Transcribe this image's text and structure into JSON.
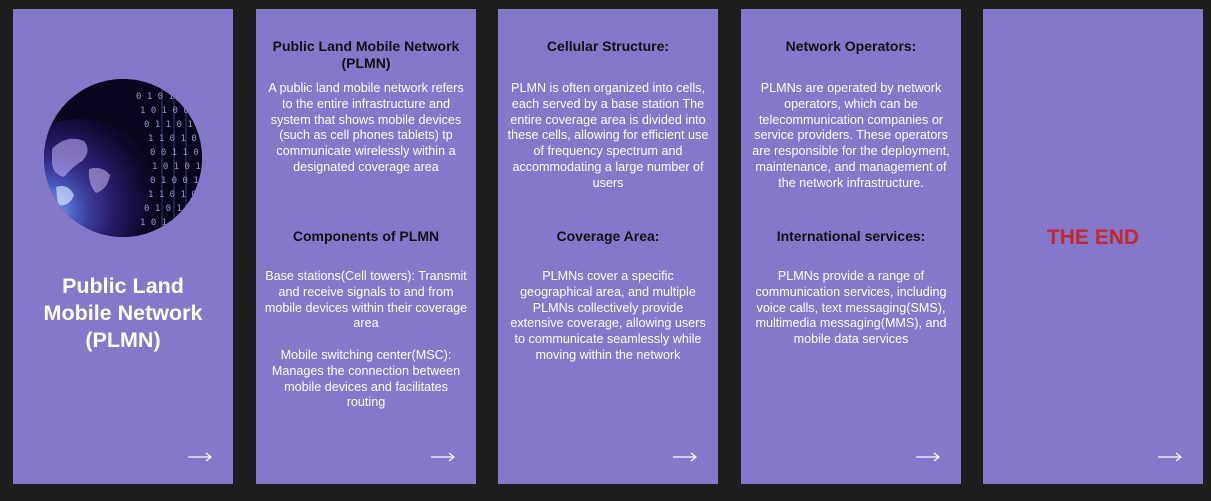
{
  "colors": {
    "background": "#1e1e1e",
    "card": "#8478cb",
    "heading": "#111111",
    "body_text": "#ffffff",
    "end_text": "#c8262e"
  },
  "cards": [
    {
      "title": "Public Land\nMobile Network\n(PLMN)",
      "image": "globe-binary-image",
      "arrow": "arrow-right-icon"
    },
    {
      "sections": [
        {
          "heading": "Public Land Mobile Network (PLMN)",
          "text": "A public land mobile network refers to the entire infrastructure and system that shows mobile devices (such as cell phones tablets) tp communicate wirelessly within a designated coverage area"
        },
        {
          "heading": "Components  of PLMN",
          "text": "Base stations(Cell towers): Transmit and receive signals to and from mobile devices within their coverage area\n\nMobile switching center(MSC):\nManages the connection between mobile devices and facilitates routing"
        }
      ],
      "arrow": "arrow-right-icon"
    },
    {
      "sections": [
        {
          "heading": "Cellular Structure:",
          "text": "PLMN is often organized into cells, each served by a base station The entire coverage area is divided into these cells, allowing for efficient use of frequency spectrum and accommodating a large number of users"
        },
        {
          "heading": "Coverage Area:",
          "text": "PLMNs cover a specific geographical area, and multiple PLMNs collectively provide extensive coverage, allowing users to communicate seamlessly while moving within the network"
        }
      ],
      "arrow": "arrow-right-icon"
    },
    {
      "sections": [
        {
          "heading": "Network Operators:",
          "text": "PLMNs are operated by network operators, which can be telecommunication companies or service providers. These operators are responsible for the deployment, maintenance, and management of the network infrastructure."
        },
        {
          "heading": "International services:",
          "text": "PLMNs provide a range of communication services, including voice calls, text messaging(SMS), multimedia messaging(MMS), and mobile data services"
        }
      ],
      "arrow": "arrow-right-icon"
    },
    {
      "end_text": "THE END",
      "arrow": "arrow-right-icon"
    }
  ]
}
